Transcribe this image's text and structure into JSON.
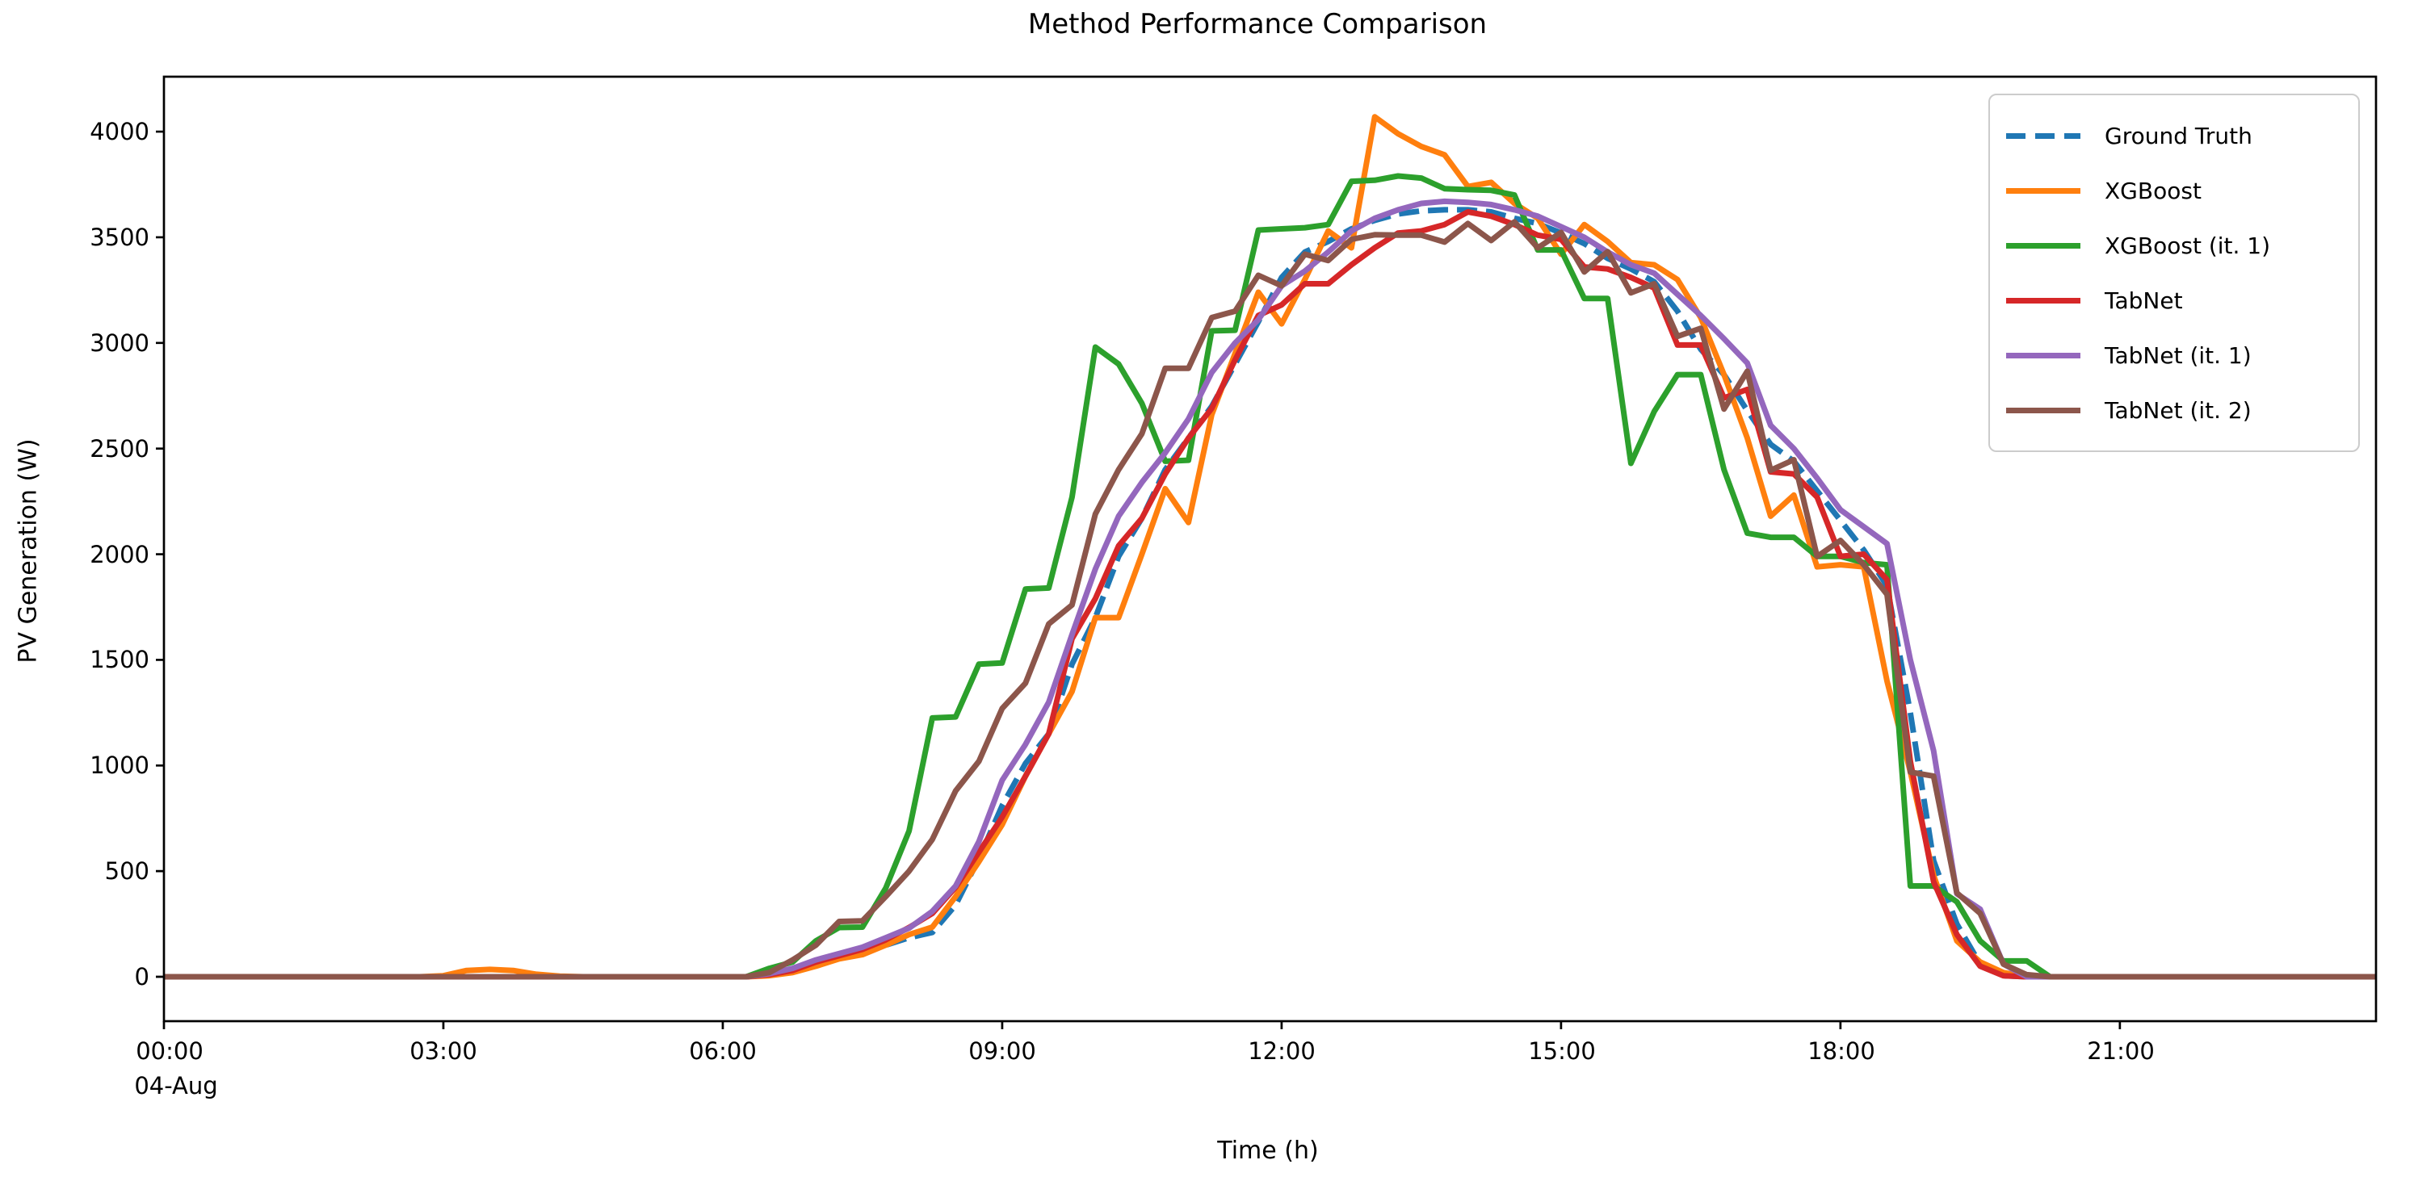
{
  "chart_data": {
    "type": "line",
    "title": "Method Performance Comparison",
    "xlabel": "Time (h)",
    "ylabel": "PV Generation (W)",
    "date_sublabel": "04-Aug",
    "legend_position": "upper right",
    "grid": false,
    "xlim_hours": [
      0,
      23.75
    ],
    "ylim": [
      -210,
      4260
    ],
    "x_start_hour": 0,
    "x_step_hours": 0.25,
    "x_tick_hours": [
      0,
      3,
      6,
      9,
      12,
      15,
      18,
      21
    ],
    "x_tick_labels": [
      "00:00",
      "03:00",
      "06:00",
      "09:00",
      "12:00",
      "15:00",
      "18:00",
      "21:00"
    ],
    "y_tick_values": [
      0,
      500,
      1000,
      1500,
      2000,
      2500,
      3000,
      3500,
      4000
    ],
    "y_tick_labels": [
      "0",
      "500",
      "1000",
      "1500",
      "2000",
      "2500",
      "3000",
      "3500",
      "4000"
    ],
    "series": [
      {
        "name": "Ground Truth",
        "color": "#1f77b4",
        "dash": true,
        "values": [
          0,
          0,
          0,
          0,
          0,
          0,
          0,
          0,
          0,
          0,
          0,
          0,
          0,
          0,
          0,
          0,
          0,
          0,
          0,
          0,
          0,
          0,
          0,
          0,
          0,
          0,
          10,
          35,
          70,
          95,
          115,
          150,
          185,
          210,
          340,
          560,
          810,
          1010,
          1150,
          1480,
          1700,
          1990,
          2170,
          2400,
          2550,
          2700,
          2900,
          3100,
          3310,
          3430,
          3480,
          3540,
          3580,
          3610,
          3625,
          3630,
          3630,
          3620,
          3590,
          3565,
          3520,
          3470,
          3400,
          3350,
          3290,
          3150,
          2970,
          2850,
          2680,
          2520,
          2440,
          2300,
          2160,
          2020,
          1850,
          1250,
          550,
          250,
          60,
          5,
          0,
          0,
          0,
          0,
          0,
          0,
          0,
          0,
          0,
          0,
          0,
          0,
          0,
          0,
          0,
          0
        ]
      },
      {
        "name": "XGBoost",
        "color": "#ff7f0e",
        "dash": false,
        "values": [
          0,
          0,
          0,
          0,
          0,
          0,
          0,
          0,
          0,
          0,
          0,
          0,
          5,
          30,
          35,
          30,
          12,
          3,
          0,
          0,
          0,
          0,
          0,
          0,
          0,
          0,
          5,
          20,
          50,
          85,
          105,
          150,
          200,
          235,
          380,
          545,
          720,
          950,
          1150,
          1350,
          1700,
          1700,
          2000,
          2310,
          2150,
          2660,
          2950,
          3240,
          3090,
          3300,
          3530,
          3450,
          4070,
          3990,
          3930,
          3890,
          3740,
          3760,
          3660,
          3590,
          3420,
          3560,
          3480,
          3380,
          3370,
          3300,
          3120,
          2850,
          2550,
          2180,
          2280,
          1940,
          1950,
          1940,
          1400,
          970,
          480,
          170,
          70,
          20,
          0,
          0,
          0,
          0,
          0,
          0,
          0,
          0,
          0,
          0,
          0,
          0,
          0,
          0,
          0,
          0
        ]
      },
      {
        "name": "XGBoost (it. 1)",
        "color": "#2ca02c",
        "dash": false,
        "values": [
          0,
          0,
          0,
          0,
          0,
          0,
          0,
          0,
          0,
          0,
          0,
          0,
          0,
          0,
          0,
          0,
          0,
          0,
          0,
          0,
          0,
          0,
          0,
          0,
          0,
          0,
          40,
          70,
          170,
          233,
          235,
          420,
          690,
          1225,
          1230,
          1480,
          1485,
          1835,
          1840,
          2270,
          2980,
          2900,
          2714,
          2440,
          2445,
          3057,
          3060,
          3534,
          3540,
          3545,
          3560,
          3765,
          3770,
          3790,
          3780,
          3730,
          3725,
          3722,
          3700,
          3440,
          3440,
          3210,
          3210,
          2430,
          2675,
          2850,
          2850,
          2400,
          2100,
          2080,
          2080,
          1990,
          1990,
          1960,
          1950,
          430,
          430,
          355,
          170,
          75,
          75,
          0,
          0,
          0,
          0,
          0,
          0,
          0,
          0,
          0,
          0,
          0,
          0,
          0,
          0,
          0
        ]
      },
      {
        "name": "TabNet",
        "color": "#d62728",
        "dash": false,
        "values": [
          0,
          0,
          0,
          0,
          0,
          0,
          0,
          0,
          0,
          0,
          0,
          0,
          0,
          0,
          0,
          0,
          0,
          0,
          0,
          0,
          0,
          0,
          0,
          0,
          0,
          0,
          10,
          30,
          70,
          100,
          130,
          175,
          233,
          300,
          424,
          590,
          756,
          950,
          1150,
          1600,
          1790,
          2040,
          2170,
          2380,
          2550,
          2690,
          2920,
          3130,
          3180,
          3280,
          3280,
          3370,
          3450,
          3520,
          3530,
          3560,
          3620,
          3600,
          3560,
          3510,
          3490,
          3360,
          3350,
          3310,
          3260,
          2990,
          2990,
          2740,
          2780,
          2390,
          2380,
          2270,
          1990,
          2000,
          1880,
          1020,
          450,
          200,
          50,
          5,
          0,
          0,
          0,
          0,
          0,
          0,
          0,
          0,
          0,
          0,
          0,
          0,
          0,
          0,
          0,
          0
        ]
      },
      {
        "name": "TabNet (it. 1)",
        "color": "#9467bd",
        "dash": false,
        "values": [
          0,
          0,
          0,
          0,
          0,
          0,
          0,
          0,
          0,
          0,
          0,
          0,
          0,
          0,
          0,
          0,
          0,
          0,
          0,
          0,
          0,
          0,
          0,
          0,
          0,
          0,
          15,
          40,
          80,
          110,
          140,
          185,
          230,
          310,
          430,
          640,
          930,
          1100,
          1300,
          1620,
          1930,
          2180,
          2340,
          2480,
          2640,
          2860,
          3000,
          3110,
          3270,
          3340,
          3430,
          3530,
          3590,
          3630,
          3660,
          3670,
          3665,
          3655,
          3630,
          3600,
          3550,
          3500,
          3430,
          3370,
          3330,
          3230,
          3130,
          3020,
          2905,
          2610,
          2500,
          2360,
          2210,
          2130,
          2050,
          1500,
          1070,
          393,
          320,
          60,
          0,
          0,
          0,
          0,
          0,
          0,
          0,
          0,
          0,
          0,
          0,
          0,
          0,
          0,
          0,
          0
        ]
      },
      {
        "name": "TabNet (it. 2)",
        "color": "#8c564b",
        "dash": false,
        "values": [
          0,
          0,
          0,
          0,
          0,
          0,
          0,
          0,
          0,
          0,
          0,
          0,
          0,
          0,
          0,
          0,
          0,
          0,
          0,
          0,
          0,
          0,
          0,
          0,
          0,
          0,
          20,
          80,
          150,
          262,
          265,
          380,
          500,
          650,
          880,
          1020,
          1270,
          1390,
          1670,
          1760,
          2190,
          2400,
          2570,
          2880,
          2880,
          3120,
          3150,
          3320,
          3270,
          3420,
          3390,
          3490,
          3512,
          3510,
          3510,
          3477,
          3565,
          3485,
          3573,
          3450,
          3523,
          3336,
          3432,
          3237,
          3280,
          3031,
          3069,
          2687,
          2866,
          2397,
          2447,
          1989,
          2065,
          1950,
          1810,
          969,
          950,
          397,
          300,
          60,
          10,
          0,
          0,
          0,
          0,
          0,
          0,
          0,
          0,
          0,
          0,
          0,
          0,
          0,
          0,
          0
        ]
      }
    ]
  }
}
